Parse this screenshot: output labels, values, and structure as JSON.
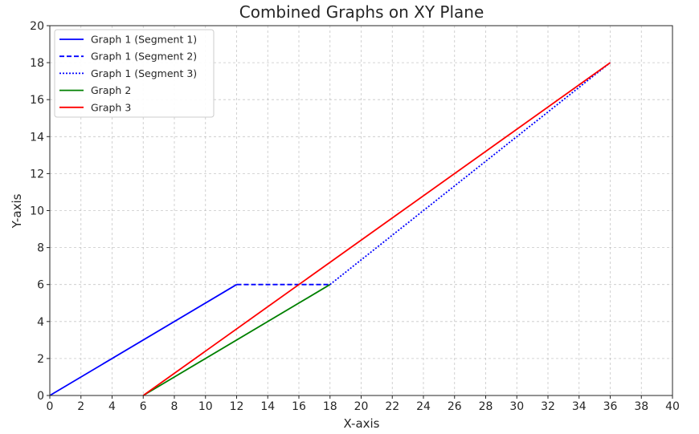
{
  "chart_data": {
    "type": "line",
    "title": "Combined Graphs on XY Plane",
    "xlabel": "X-axis",
    "ylabel": "Y-axis",
    "xlim": [
      0,
      40
    ],
    "ylim": [
      0,
      20
    ],
    "xticks": [
      0,
      2,
      4,
      6,
      8,
      10,
      12,
      14,
      16,
      18,
      20,
      22,
      24,
      26,
      28,
      30,
      32,
      34,
      36,
      38,
      40
    ],
    "yticks": [
      0,
      2,
      4,
      6,
      8,
      10,
      12,
      14,
      16,
      18,
      20
    ],
    "grid": true,
    "legend_position": "top-left",
    "series": [
      {
        "name": "Graph 1 (Segment 1)",
        "color": "#0000ff",
        "style": "solid",
        "x": [
          0,
          12
        ],
        "y": [
          0,
          6
        ]
      },
      {
        "name": "Graph 1 (Segment 2)",
        "color": "#0000ff",
        "style": "dashed",
        "x": [
          12,
          18
        ],
        "y": [
          6,
          6
        ]
      },
      {
        "name": "Graph 1 (Segment 3)",
        "color": "#0000ff",
        "style": "dotted",
        "x": [
          18,
          36
        ],
        "y": [
          6,
          18
        ]
      },
      {
        "name": "Graph 2",
        "color": "#008000",
        "style": "solid",
        "x": [
          6,
          18
        ],
        "y": [
          0,
          6
        ]
      },
      {
        "name": "Graph 3",
        "color": "#ff0000",
        "style": "solid",
        "x": [
          6,
          36
        ],
        "y": [
          0,
          18
        ]
      }
    ]
  }
}
